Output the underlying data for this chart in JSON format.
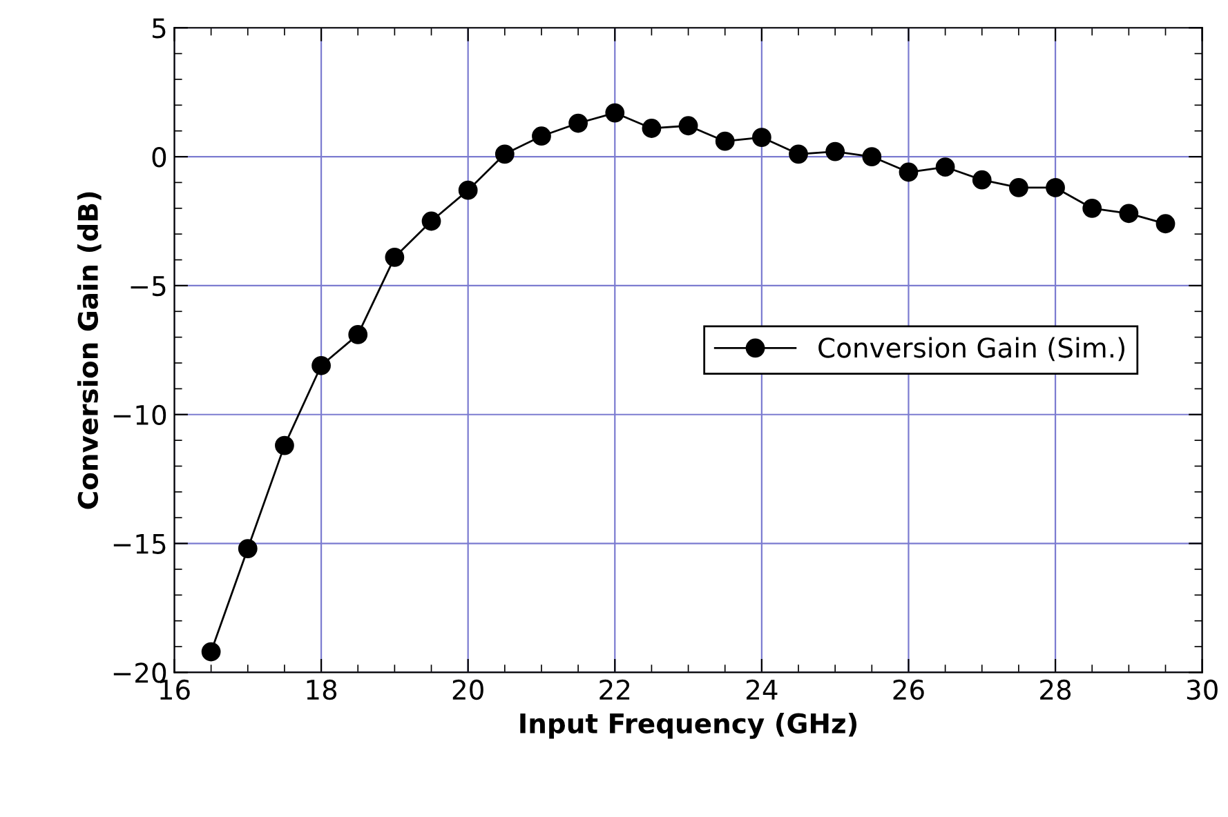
{
  "chart_data": {
    "type": "line",
    "xlabel": "Input Frequency (GHz)",
    "ylabel": "Conversion Gain (dB)",
    "x": [
      16.5,
      17,
      17.5,
      18,
      18.5,
      19,
      19.5,
      20,
      20.5,
      21,
      21.5,
      22,
      22.5,
      23,
      23.5,
      24,
      24.5,
      25,
      25.5,
      26,
      26.5,
      27,
      27.5,
      28,
      28.5,
      29,
      29.5
    ],
    "series": [
      {
        "name": "Conversion Gain (Sim.)",
        "color": "#000000",
        "values": [
          -19.2,
          -15.2,
          -11.2,
          -8.1,
          -6.9,
          -3.9,
          -2.5,
          -1.3,
          0.1,
          0.8,
          1.3,
          1.7,
          1.1,
          1.2,
          0.6,
          0.75,
          0.1,
          0.2,
          0.0,
          -0.6,
          -0.4,
          -0.9,
          -1.2,
          -1.2,
          -2.0,
          -2.2,
          -2.6
        ]
      }
    ],
    "xlim": [
      16,
      30
    ],
    "xticks": [
      16,
      18,
      20,
      22,
      24,
      26,
      28,
      30
    ],
    "ylim": [
      -20,
      5
    ],
    "yticks": [
      -20,
      -15,
      -10,
      -5,
      0,
      5
    ],
    "grid": true,
    "legend": "right",
    "marker": "circle",
    "line_style": "solid"
  }
}
